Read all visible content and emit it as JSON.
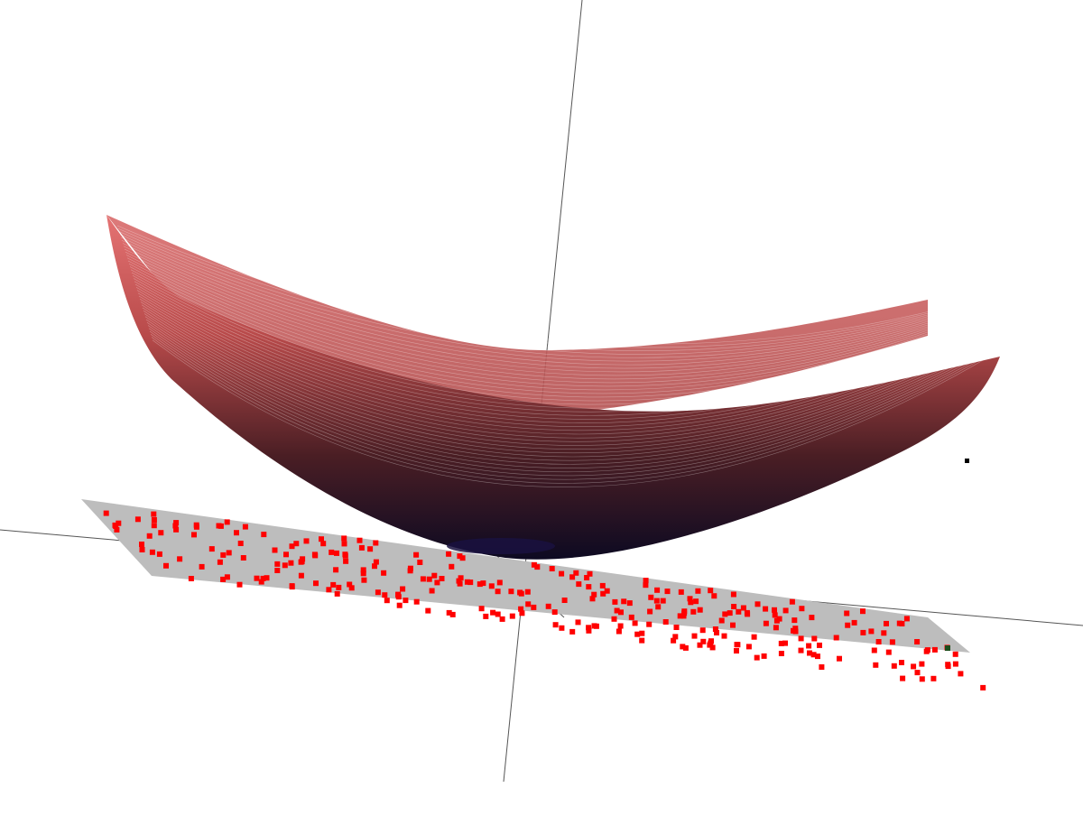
{
  "scene": {
    "type": "3d-surface-plot",
    "surface": {
      "shape": "paraboloid-bowl",
      "rendering": "wireframe-dense-mesh",
      "color_top": "#e06a6a",
      "color_bottom": "#1a1030",
      "min_color": "#2a1a5a"
    },
    "plane": {
      "color": "#bdbdbd",
      "point_color": "#ff0000",
      "point_count": 300,
      "special_point_color": "#1b4d1b"
    },
    "axes": {
      "color": "#555555"
    },
    "marker_color": "#000000",
    "background": "#ffffff"
  }
}
